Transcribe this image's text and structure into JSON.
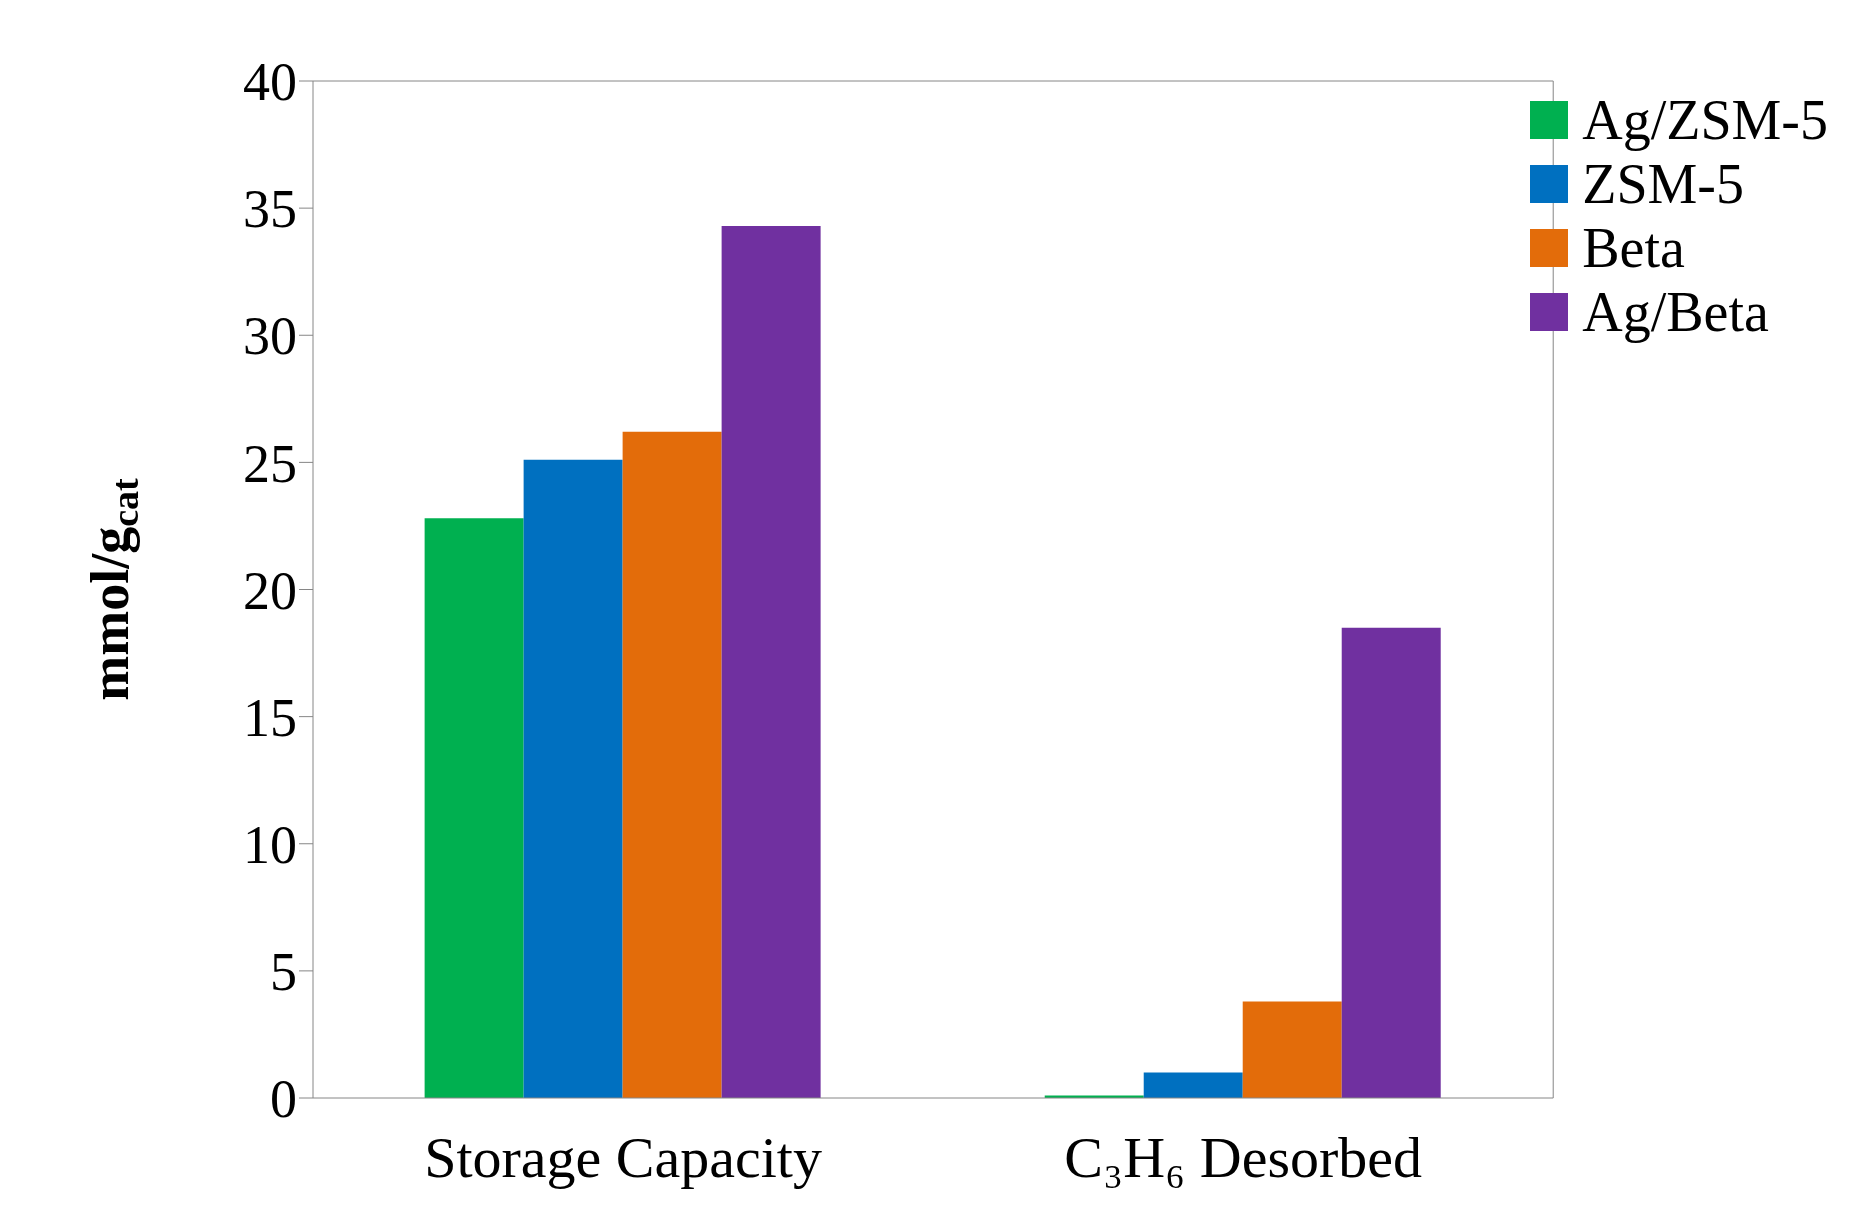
{
  "chart_data": {
    "type": "bar",
    "ylabel": "mmol/g$_{cat}$",
    "categories": [
      "Storage Capacity",
      "C₃H₆ Desorbed"
    ],
    "series": [
      {
        "name": "Ag/ZSM-5",
        "color": "#00b050",
        "values": [
          22.8,
          0.1
        ]
      },
      {
        "name": "ZSM-5",
        "color": "#0070c0",
        "values": [
          25.1,
          1.0
        ]
      },
      {
        "name": "Beta",
        "color": "#e36c0a",
        "values": [
          26.2,
          3.8
        ]
      },
      {
        "name": "Ag/Beta",
        "color": "#7030a0",
        "values": [
          34.3,
          18.5
        ]
      }
    ],
    "ylim": [
      0,
      40
    ],
    "yticks": [
      0,
      5,
      10,
      15,
      20,
      25,
      30,
      35,
      40
    ],
    "grid": false,
    "legend": "top right"
  }
}
